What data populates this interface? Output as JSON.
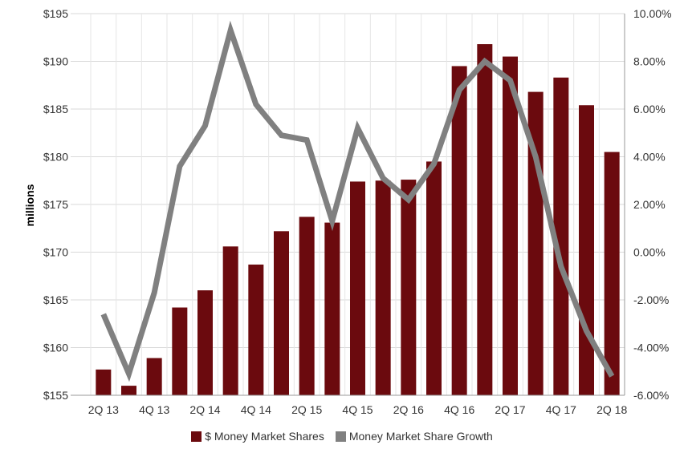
{
  "chart_data": {
    "type": "bar",
    "categories": [
      "2Q 13",
      "3Q 13",
      "4Q 13",
      "1Q 14",
      "2Q 14",
      "3Q 14",
      "4Q 14",
      "1Q 15",
      "2Q 15",
      "3Q 15",
      "4Q 15",
      "1Q 16",
      "2Q 16",
      "3Q 16",
      "4Q 16",
      "1Q 17",
      "2Q 17",
      "3Q 17",
      "4Q 17",
      "1Q 18",
      "2Q 18"
    ],
    "x_tick_labels": [
      "2Q 13",
      "4Q 13",
      "2Q 14",
      "4Q 14",
      "2Q 15",
      "4Q 15",
      "2Q 16",
      "4Q 16",
      "2Q 17",
      "4Q 17",
      "2Q 18"
    ],
    "ylabel": "millions",
    "ylim": [
      155,
      195
    ],
    "y2lim": [
      -6,
      10
    ],
    "y_tick_labels": [
      "$155",
      "$160",
      "$165",
      "$170",
      "$175",
      "$180",
      "$185",
      "$190",
      "$195"
    ],
    "y2_tick_labels": [
      "-6.00%",
      "-4.00%",
      "-2.00%",
      "0.00%",
      "2.00%",
      "4.00%",
      "6.00%",
      "8.00%",
      "10.00%"
    ],
    "grid": true,
    "legend_position": "bottom",
    "series": [
      {
        "name": "$ Money Market Shares",
        "kind": "bar",
        "axis": "left",
        "color": "#6b0a0e",
        "values": [
          157.7,
          156.0,
          158.9,
          164.2,
          166.0,
          170.6,
          168.7,
          172.2,
          173.7,
          173.1,
          177.4,
          177.5,
          177.6,
          179.5,
          189.5,
          191.8,
          190.5,
          186.8,
          188.3,
          185.4,
          180.5
        ]
      },
      {
        "name": "Money Market Share Growth",
        "kind": "line",
        "axis": "right",
        "color": "#808080",
        "values": [
          -2.6,
          -5.1,
          -1.7,
          3.6,
          5.3,
          9.3,
          6.2,
          4.9,
          4.7,
          1.3,
          5.2,
          3.1,
          2.2,
          3.7,
          6.8,
          8.0,
          7.2,
          4.0,
          -0.6,
          -3.3,
          -5.2
        ]
      }
    ]
  }
}
